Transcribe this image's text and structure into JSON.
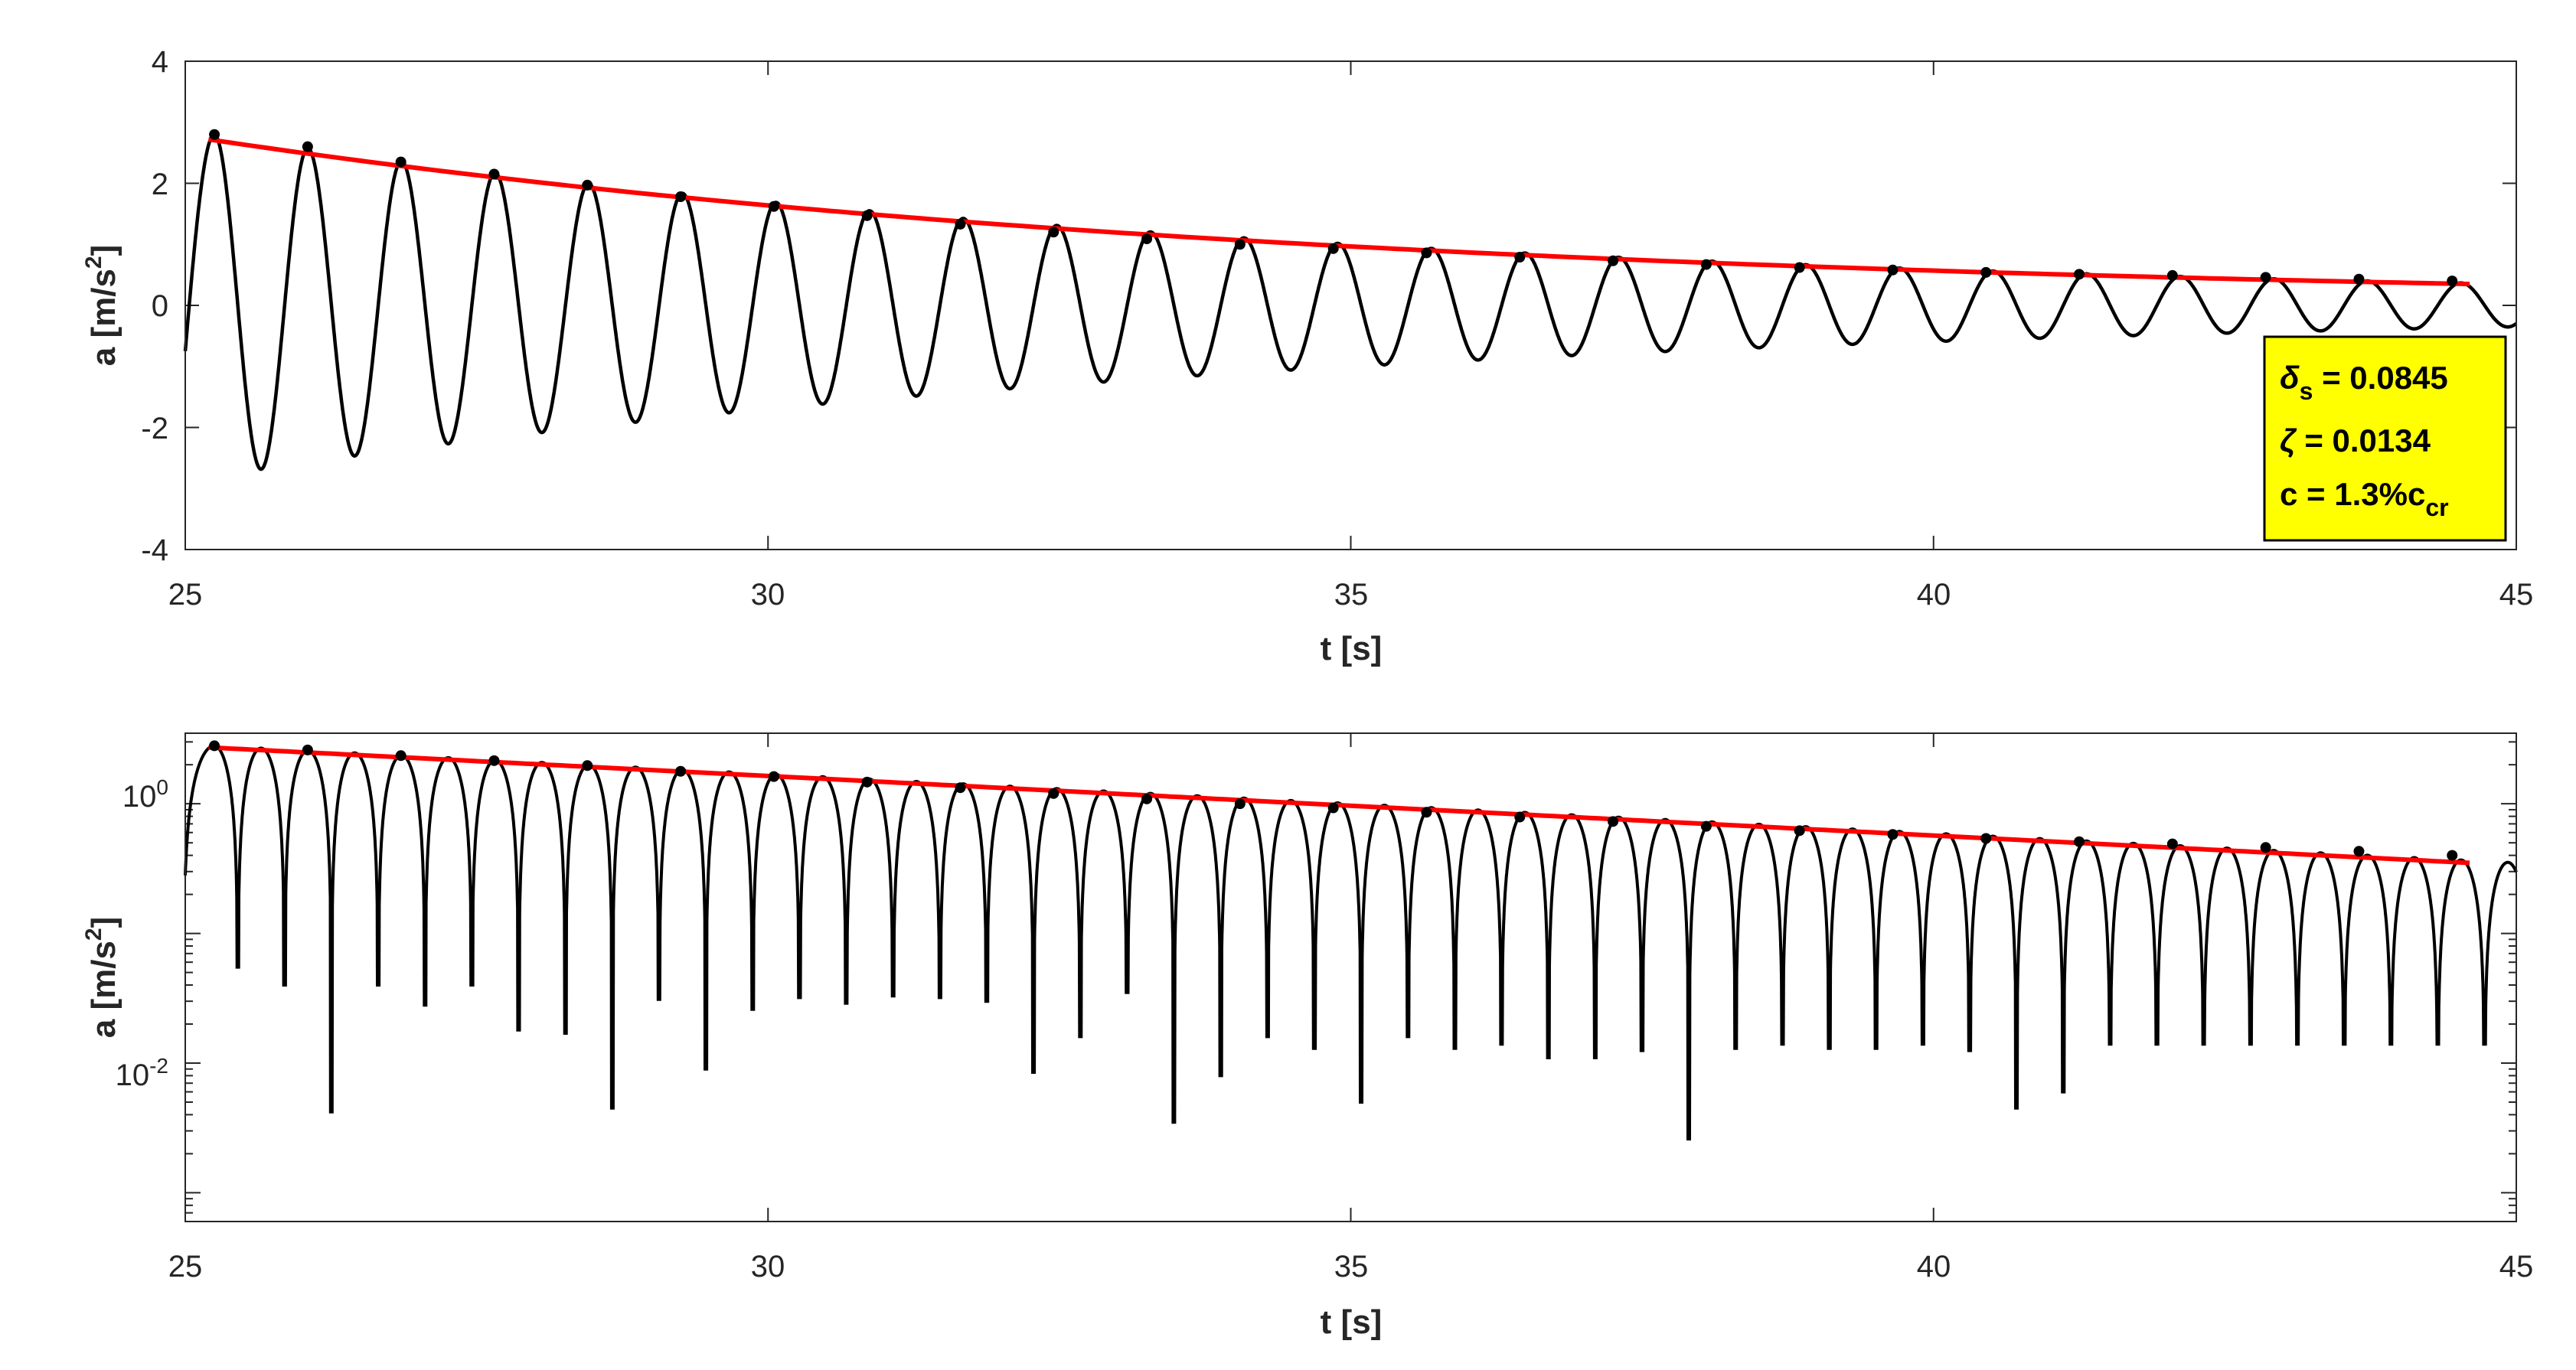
{
  "chart_data": [
    {
      "type": "line",
      "xlabel": "t [s]",
      "ylabel_main": "a [m/s",
      "ylabel_sup": "2",
      "ylabel_end": "]",
      "xlim": [
        25,
        45
      ],
      "ylim": [
        -4,
        4
      ],
      "yscale": "linear",
      "xticks": [
        "25",
        "30",
        "35",
        "40",
        "45"
      ],
      "yticks": [
        "-4",
        "-2",
        "0",
        "2",
        "4"
      ],
      "grid": false,
      "signal": {
        "color": "#000000",
        "frequency_hz": 1.245,
        "first_peak": [
          25.25,
          2.8
        ],
        "log_decrement": 0.0845,
        "start_value_at_25s": -0.75
      },
      "peaks": {
        "color": "#000000",
        "t": [
          25.25,
          26.05,
          26.85,
          27.65,
          28.45,
          29.25,
          30.05,
          30.85,
          31.65,
          32.45,
          33.25,
          34.05,
          34.85,
          35.65,
          36.45,
          37.25,
          38.05,
          38.85,
          39.65,
          40.45,
          41.25,
          42.05,
          42.85,
          43.65,
          44.45
        ],
        "a": [
          2.8,
          2.6,
          2.35,
          2.15,
          1.97,
          1.78,
          1.62,
          1.47,
          1.33,
          1.2,
          1.09,
          1.0,
          0.93,
          0.86,
          0.79,
          0.73,
          0.67,
          0.62,
          0.58,
          0.54,
          0.51,
          0.49,
          0.46,
          0.43,
          0.4
        ]
      },
      "fit": {
        "color": "#ff0000",
        "t": [
          25.2,
          30,
          35,
          40,
          44.6
        ],
        "a": [
          2.72,
          1.65,
          0.97,
          0.57,
          0.35
        ]
      },
      "annotation": {
        "line1_symbol": "δ",
        "line1_sub": "s",
        "line1_value": " = 0.0845",
        "line2_symbol": "ζ",
        "line2_value": " = 0.0134",
        "line3_text": "c = 1.3%c",
        "line3_sub": "cr",
        "background": "#ffff00",
        "placement": "lower-right"
      }
    },
    {
      "type": "line",
      "xlabel": "t [s]",
      "ylabel_main": "a [m/s",
      "ylabel_sup": "2",
      "ylabel_end": "]",
      "xlim": [
        25,
        45
      ],
      "ylim": [
        0.0006,
        3.5
      ],
      "yscale": "log",
      "xticks": [
        "25",
        "30",
        "35",
        "40",
        "45"
      ],
      "yticks": [
        {
          "base": "10",
          "exp": "0",
          "value": 1
        },
        {
          "base": "10",
          "exp": "-2",
          "value": 0.01
        }
      ],
      "grid": false,
      "signal": {
        "color": "#000000",
        "description_of_values": "absolute value of upper signal",
        "trough_minima": [
          0.055,
          0.04,
          0.0042,
          0.04,
          0.028,
          0.04,
          0.018,
          0.017,
          0.0045,
          0.031,
          0.009,
          0.026,
          0.032,
          0.029,
          0.033,
          0.032,
          0.03,
          0.0085,
          0.016,
          0.035,
          0.0035,
          0.008,
          0.016,
          0.013,
          0.005,
          0.016,
          0.013,
          0.014,
          0.011,
          0.011,
          0.0125,
          0.0026,
          0.013,
          0.014,
          0.013,
          0.013,
          0.014,
          0.0125,
          0.0045,
          0.006,
          0.014
        ]
      },
      "peaks": {
        "color": "#000000",
        "t": [
          25.25,
          26.05,
          26.85,
          27.65,
          28.45,
          29.25,
          30.05,
          30.85,
          31.65,
          32.45,
          33.25,
          34.05,
          34.85,
          35.65,
          36.45,
          37.25,
          38.05,
          38.85,
          39.65,
          40.45,
          41.25,
          42.05,
          42.85,
          43.65,
          44.45
        ],
        "a": [
          2.8,
          2.6,
          2.35,
          2.15,
          1.97,
          1.78,
          1.62,
          1.47,
          1.33,
          1.2,
          1.09,
          1.0,
          0.93,
          0.86,
          0.79,
          0.73,
          0.67,
          0.62,
          0.58,
          0.54,
          0.51,
          0.49,
          0.46,
          0.43,
          0.4
        ]
      },
      "fit": {
        "color": "#ff0000",
        "t": [
          25.2,
          30,
          35,
          40,
          44.6
        ],
        "a": [
          2.72,
          1.65,
          0.97,
          0.57,
          0.35
        ]
      }
    }
  ]
}
